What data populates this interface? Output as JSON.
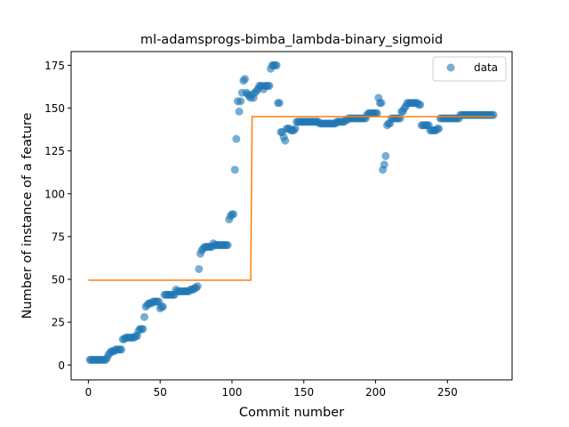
{
  "chart_data": {
    "type": "scatter",
    "title": "ml-adamsprogs-bimba_lambda-binary_sigmoid",
    "xlabel": "Commit number",
    "ylabel": "Number of instance of a feature",
    "xlim": [
      -12,
      295
    ],
    "ylim": [
      -8.7,
      183
    ],
    "xticks": [
      0,
      50,
      100,
      150,
      200,
      250
    ],
    "yticks": [
      0,
      25,
      50,
      75,
      100,
      125,
      150,
      175
    ],
    "grid": false,
    "legend": {
      "position": "top-right",
      "entries": [
        "data"
      ]
    },
    "colors": {
      "data": "#1f77b4",
      "fit": "#ff7f0e"
    },
    "series": [
      {
        "name": "data",
        "kind": "scatter",
        "points": [
          [
            1,
            3
          ],
          [
            2,
            3
          ],
          [
            3,
            3
          ],
          [
            4,
            3
          ],
          [
            5,
            3
          ],
          [
            6,
            3
          ],
          [
            7,
            3
          ],
          [
            8,
            3
          ],
          [
            9,
            3
          ],
          [
            10,
            3
          ],
          [
            11,
            3
          ],
          [
            12,
            3
          ],
          [
            13,
            4
          ],
          [
            14,
            6
          ],
          [
            15,
            7
          ],
          [
            16,
            8
          ],
          [
            17,
            8
          ],
          [
            18,
            8
          ],
          [
            19,
            9
          ],
          [
            20,
            9
          ],
          [
            21,
            9
          ],
          [
            22,
            9
          ],
          [
            23,
            9
          ],
          [
            24,
            15
          ],
          [
            25,
            15
          ],
          [
            26,
            16
          ],
          [
            27,
            16
          ],
          [
            28,
            16
          ],
          [
            29,
            16
          ],
          [
            30,
            16
          ],
          [
            31,
            16
          ],
          [
            32,
            16
          ],
          [
            33,
            17
          ],
          [
            34,
            17
          ],
          [
            35,
            20
          ],
          [
            36,
            21
          ],
          [
            37,
            21
          ],
          [
            38,
            21
          ],
          [
            39,
            28
          ],
          [
            40,
            34
          ],
          [
            41,
            35
          ],
          [
            42,
            36
          ],
          [
            43,
            36
          ],
          [
            44,
            36
          ],
          [
            45,
            37
          ],
          [
            46,
            37
          ],
          [
            47,
            37
          ],
          [
            48,
            37
          ],
          [
            49,
            37
          ],
          [
            50,
            33
          ],
          [
            51,
            34
          ],
          [
            52,
            34
          ],
          [
            53,
            41
          ],
          [
            54,
            41
          ],
          [
            55,
            41
          ],
          [
            56,
            41
          ],
          [
            57,
            41
          ],
          [
            58,
            41
          ],
          [
            59,
            41
          ],
          [
            60,
            41
          ],
          [
            61,
            44
          ],
          [
            62,
            43
          ],
          [
            63,
            43
          ],
          [
            64,
            43
          ],
          [
            65,
            43
          ],
          [
            66,
            43
          ],
          [
            67,
            43
          ],
          [
            68,
            43
          ],
          [
            69,
            43
          ],
          [
            70,
            43
          ],
          [
            71,
            44
          ],
          [
            72,
            44
          ],
          [
            73,
            44
          ],
          [
            74,
            45
          ],
          [
            75,
            45
          ],
          [
            76,
            46
          ],
          [
            77,
            56
          ],
          [
            78,
            65
          ],
          [
            79,
            67
          ],
          [
            80,
            68
          ],
          [
            81,
            69
          ],
          [
            82,
            69
          ],
          [
            83,
            69
          ],
          [
            84,
            69
          ],
          [
            85,
            69
          ],
          [
            86,
            69
          ],
          [
            87,
            71
          ],
          [
            88,
            70
          ],
          [
            89,
            70
          ],
          [
            90,
            70
          ],
          [
            91,
            70
          ],
          [
            92,
            70
          ],
          [
            93,
            70
          ],
          [
            94,
            70
          ],
          [
            95,
            70
          ],
          [
            96,
            70
          ],
          [
            97,
            70
          ],
          [
            98,
            85
          ],
          [
            99,
            87
          ],
          [
            100,
            88
          ],
          [
            101,
            88
          ],
          [
            102,
            114
          ],
          [
            103,
            132
          ],
          [
            104,
            154
          ],
          [
            105,
            148
          ],
          [
            106,
            154
          ],
          [
            107,
            159
          ],
          [
            108,
            166
          ],
          [
            109,
            167
          ],
          [
            110,
            159
          ],
          [
            111,
            158
          ],
          [
            112,
            157
          ],
          [
            113,
            156
          ],
          [
            114,
            158
          ],
          [
            115,
            156
          ],
          [
            116,
            159
          ],
          [
            117,
            160
          ],
          [
            118,
            161
          ],
          [
            119,
            163
          ],
          [
            120,
            163
          ],
          [
            121,
            163
          ],
          [
            122,
            161
          ],
          [
            123,
            163
          ],
          [
            124,
            163
          ],
          [
            125,
            163
          ],
          [
            126,
            163
          ],
          [
            127,
            173
          ],
          [
            128,
            175
          ],
          [
            129,
            175
          ],
          [
            130,
            175
          ],
          [
            131,
            175
          ],
          [
            132,
            153
          ],
          [
            133,
            153
          ],
          [
            134,
            136
          ],
          [
            135,
            136
          ],
          [
            136,
            133
          ],
          [
            137,
            131
          ],
          [
            138,
            138
          ],
          [
            139,
            138
          ],
          [
            140,
            138
          ],
          [
            141,
            137
          ],
          [
            142,
            137
          ],
          [
            143,
            137
          ],
          [
            144,
            138
          ],
          [
            145,
            142
          ],
          [
            146,
            142
          ],
          [
            147,
            142
          ],
          [
            148,
            142
          ],
          [
            149,
            142
          ],
          [
            150,
            142
          ],
          [
            151,
            142
          ],
          [
            152,
            142
          ],
          [
            153,
            142
          ],
          [
            154,
            142
          ],
          [
            155,
            142
          ],
          [
            156,
            142
          ],
          [
            157,
            142
          ],
          [
            158,
            142
          ],
          [
            159,
            142
          ],
          [
            160,
            142
          ],
          [
            161,
            141
          ],
          [
            162,
            141
          ],
          [
            163,
            141
          ],
          [
            164,
            141
          ],
          [
            165,
            141
          ],
          [
            166,
            141
          ],
          [
            167,
            141
          ],
          [
            168,
            141
          ],
          [
            169,
            141
          ],
          [
            170,
            141
          ],
          [
            171,
            141
          ],
          [
            172,
            141
          ],
          [
            173,
            142
          ],
          [
            174,
            142
          ],
          [
            175,
            142
          ],
          [
            176,
            142
          ],
          [
            177,
            142
          ],
          [
            178,
            142
          ],
          [
            179,
            143
          ],
          [
            180,
            143
          ],
          [
            181,
            144
          ],
          [
            182,
            144
          ],
          [
            183,
            144
          ],
          [
            184,
            144
          ],
          [
            185,
            144
          ],
          [
            186,
            144
          ],
          [
            187,
            144
          ],
          [
            188,
            144
          ],
          [
            189,
            144
          ],
          [
            190,
            144
          ],
          [
            191,
            144
          ],
          [
            192,
            144
          ],
          [
            193,
            144
          ],
          [
            194,
            146
          ],
          [
            195,
            147
          ],
          [
            196,
            147
          ],
          [
            197,
            147
          ],
          [
            198,
            147
          ],
          [
            199,
            147
          ],
          [
            200,
            147
          ],
          [
            201,
            147
          ],
          [
            202,
            156
          ],
          [
            203,
            153
          ],
          [
            204,
            153
          ],
          [
            205,
            114
          ],
          [
            206,
            117
          ],
          [
            207,
            122
          ],
          [
            208,
            140
          ],
          [
            209,
            141
          ],
          [
            210,
            141
          ],
          [
            211,
            144
          ],
          [
            212,
            144
          ],
          [
            213,
            144
          ],
          [
            214,
            144
          ],
          [
            215,
            144
          ],
          [
            216,
            144
          ],
          [
            217,
            144
          ],
          [
            218,
            148
          ],
          [
            219,
            148
          ],
          [
            220,
            150
          ],
          [
            221,
            151
          ],
          [
            222,
            153
          ],
          [
            223,
            153
          ],
          [
            224,
            153
          ],
          [
            225,
            153
          ],
          [
            226,
            153
          ],
          [
            227,
            153
          ],
          [
            228,
            153
          ],
          [
            229,
            153
          ],
          [
            230,
            152
          ],
          [
            231,
            152
          ],
          [
            232,
            140
          ],
          [
            233,
            140
          ],
          [
            234,
            140
          ],
          [
            235,
            140
          ],
          [
            236,
            140
          ],
          [
            237,
            140
          ],
          [
            238,
            137
          ],
          [
            239,
            137
          ],
          [
            240,
            137
          ],
          [
            241,
            137
          ],
          [
            242,
            137
          ],
          [
            243,
            138
          ],
          [
            244,
            138
          ],
          [
            245,
            144
          ],
          [
            246,
            144
          ],
          [
            247,
            144
          ],
          [
            248,
            144
          ],
          [
            249,
            144
          ],
          [
            250,
            144
          ],
          [
            251,
            144
          ],
          [
            252,
            144
          ],
          [
            253,
            144
          ],
          [
            254,
            144
          ],
          [
            255,
            144
          ],
          [
            256,
            144
          ],
          [
            257,
            144
          ],
          [
            258,
            144
          ],
          [
            259,
            146
          ],
          [
            260,
            146
          ],
          [
            261,
            146
          ],
          [
            262,
            146
          ],
          [
            263,
            146
          ],
          [
            264,
            146
          ],
          [
            265,
            146
          ],
          [
            266,
            146
          ],
          [
            267,
            146
          ],
          [
            268,
            146
          ],
          [
            269,
            146
          ],
          [
            270,
            146
          ],
          [
            271,
            146
          ],
          [
            272,
            146
          ],
          [
            273,
            146
          ],
          [
            274,
            146
          ],
          [
            275,
            146
          ],
          [
            276,
            146
          ],
          [
            277,
            146
          ],
          [
            278,
            146
          ],
          [
            279,
            146
          ],
          [
            280,
            146
          ],
          [
            281,
            146
          ],
          [
            282,
            146
          ]
        ]
      },
      {
        "kind": "line",
        "points": [
          [
            0,
            49.5
          ],
          [
            113,
            49.5
          ],
          [
            114,
            145
          ],
          [
            282,
            145
          ]
        ]
      }
    ]
  }
}
